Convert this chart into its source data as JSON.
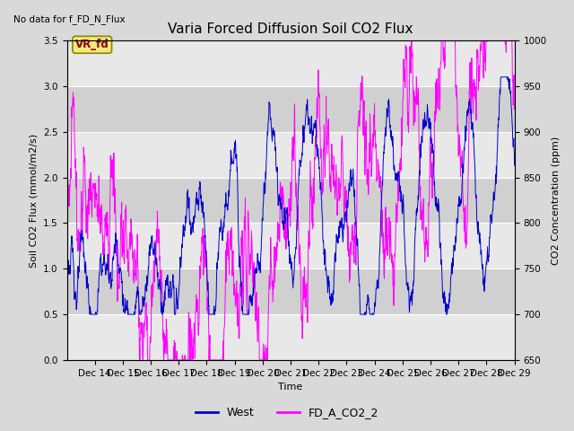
{
  "title": "Varia Forced Diffusion Soil CO2 Flux",
  "no_data_text": "No data for f_FD_N_Flux",
  "vr_label": "VR_fd",
  "xlabel": "Time",
  "ylabel_left": "Soil CO2 Flux (mmol/m2/s)",
  "ylabel_right": "CO2 Concentration (ppm)",
  "ylim_left": [
    0.0,
    3.5
  ],
  "ylim_right": [
    650,
    1000
  ],
  "xtick_labels": [
    "Dec 14",
    "Dec 15",
    "Dec 16",
    "Dec 17",
    "Dec 18",
    "Dec 19",
    "Dec 20",
    "Dec 21",
    "Dec 22",
    "Dec 23",
    "Dec 24",
    "Dec 25",
    "Dec 26",
    "Dec 27",
    "Dec 28",
    "Dec 29"
  ],
  "yticks_left": [
    0.0,
    0.5,
    1.0,
    1.5,
    2.0,
    2.5,
    3.0,
    3.5
  ],
  "yticks_right": [
    650,
    700,
    750,
    800,
    850,
    900,
    950,
    1000
  ],
  "line1_color": "#0000cc",
  "line2_color": "#ff00ff",
  "line1_label": "West",
  "line2_label": "FD_A_CO2_2",
  "fig_bg_color": "#d9d9d9",
  "plot_bg_light": "#e8e8e8",
  "plot_bg_dark": "#d0d0d0",
  "grid_color": "#ffffff",
  "title_fontsize": 11,
  "axis_fontsize": 8,
  "tick_fontsize": 7.5,
  "legend_fontsize": 9
}
